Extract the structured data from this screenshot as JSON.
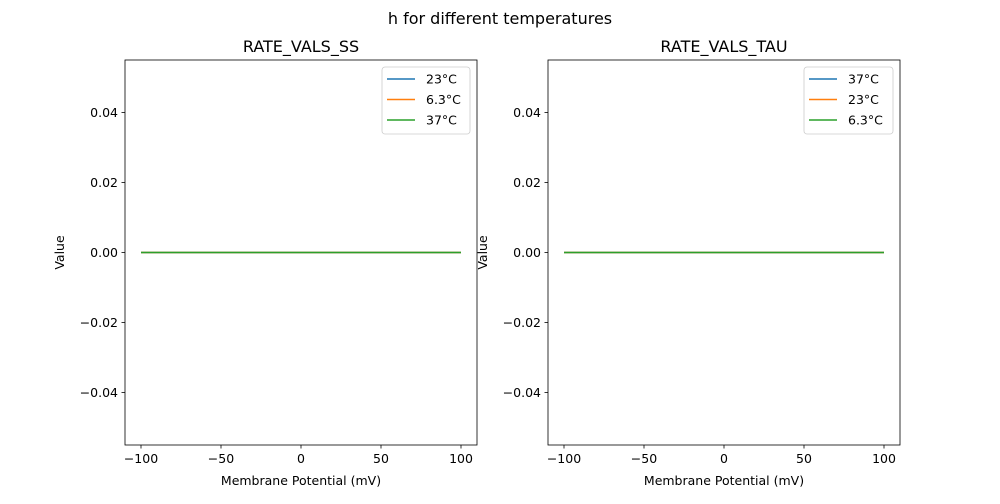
{
  "chart_data": {
    "suptitle": "h for different temperatures",
    "panels": [
      {
        "type": "line",
        "title": "RATE_VALS_SS",
        "xlabel": "Membrane Potential (mV)",
        "ylabel": "Value",
        "xlim": [
          -110,
          110
        ],
        "ylim": [
          -0.055,
          0.055
        ],
        "xticks": [
          -100,
          -50,
          0,
          50,
          100
        ],
        "xtick_labels": [
          "−100",
          "−50",
          "0",
          "50",
          "100"
        ],
        "yticks": [
          -0.04,
          -0.02,
          0.0,
          0.02,
          0.04
        ],
        "ytick_labels": [
          "−0.04",
          "−0.02",
          "0.00",
          "0.02",
          "0.04"
        ],
        "legend_position": "top-right",
        "grid": false,
        "series": [
          {
            "name": "23°C",
            "color": "#1f77b4",
            "x": [
              -100,
              100
            ],
            "y": [
              0,
              0
            ]
          },
          {
            "name": "6.3°C",
            "color": "#ff7f0e",
            "x": [
              -100,
              100
            ],
            "y": [
              0,
              0
            ]
          },
          {
            "name": "37°C",
            "color": "#2ca02c",
            "x": [
              -100,
              100
            ],
            "y": [
              0,
              0
            ]
          }
        ]
      },
      {
        "type": "line",
        "title": "RATE_VALS_TAU",
        "xlabel": "Membrane Potential (mV)",
        "ylabel": "Value",
        "xlim": [
          -110,
          110
        ],
        "ylim": [
          -0.055,
          0.055
        ],
        "xticks": [
          -100,
          -50,
          0,
          50,
          100
        ],
        "xtick_labels": [
          "−100",
          "−50",
          "0",
          "50",
          "100"
        ],
        "yticks": [
          -0.04,
          -0.02,
          0.0,
          0.02,
          0.04
        ],
        "ytick_labels": [
          "−0.04",
          "−0.02",
          "0.00",
          "0.02",
          "0.04"
        ],
        "legend_position": "top-right",
        "grid": false,
        "series": [
          {
            "name": "37°C",
            "color": "#1f77b4",
            "x": [
              -100,
              100
            ],
            "y": [
              0,
              0
            ]
          },
          {
            "name": "23°C",
            "color": "#ff7f0e",
            "x": [
              -100,
              100
            ],
            "y": [
              0,
              0
            ]
          },
          {
            "name": "6.3°C",
            "color": "#2ca02c",
            "x": [
              -100,
              100
            ],
            "y": [
              0,
              0
            ]
          }
        ]
      }
    ]
  }
}
